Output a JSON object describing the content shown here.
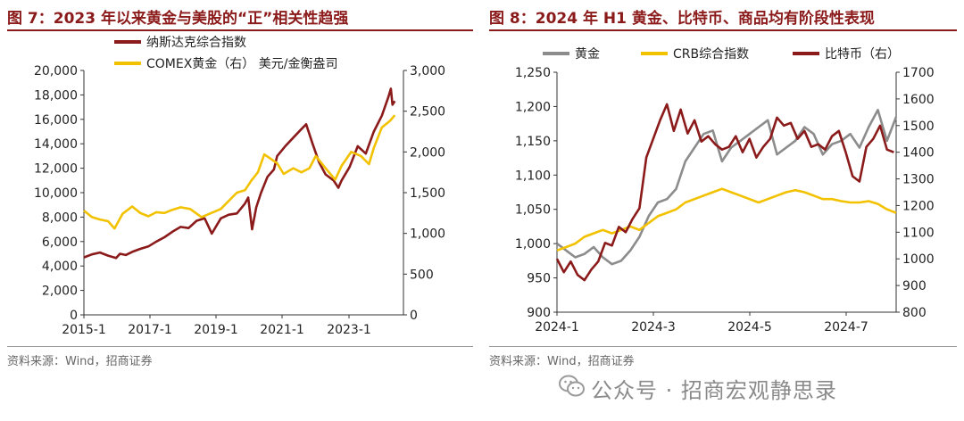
{
  "watermark": {
    "text": "公众号 · 招商宏观静思录",
    "icon": "wechat-icon"
  },
  "chart_data": [
    {
      "type": "line",
      "title": "图 7：2023 年以来黄金与美股的“正”相关性趋强",
      "source": "资料来源：Wind，招商证券",
      "x_ticks": [
        "2015-1",
        "2017-1",
        "2019-1",
        "2021-1",
        "2023-1"
      ],
      "x_range": [
        2015.0,
        2024.92
      ],
      "y_left": {
        "ticks": [
          "0",
          "2,000",
          "4,000",
          "6,000",
          "8,000",
          "10,000",
          "12,000",
          "14,000",
          "16,000",
          "18,000",
          "20,000"
        ],
        "range": [
          0,
          20000
        ]
      },
      "y_right": {
        "ticks": [
          "0",
          "500",
          "1,000",
          "1,500",
          "2,000",
          "2,500",
          "3,000"
        ],
        "range": [
          0,
          3000
        ]
      },
      "legend_position": "top-left",
      "series": [
        {
          "name": "纳斯达克综合指数",
          "axis": "left",
          "color": "#8B1A1A",
          "x": [
            2015.0,
            2015.25,
            2015.5,
            2015.75,
            2016.0,
            2016.12,
            2016.3,
            2016.5,
            2016.75,
            2017.0,
            2017.25,
            2017.5,
            2017.75,
            2018.0,
            2018.25,
            2018.5,
            2018.75,
            2018.97,
            2019.25,
            2019.5,
            2019.75,
            2020.0,
            2020.1,
            2020.22,
            2020.35,
            2020.5,
            2020.7,
            2020.9,
            2021.0,
            2021.25,
            2021.5,
            2021.75,
            2021.9,
            2022.1,
            2022.3,
            2022.5,
            2022.75,
            2022.9,
            2023.0,
            2023.25,
            2023.5,
            2023.75,
            2024.0,
            2024.25,
            2024.45,
            2024.53,
            2024.58,
            2024.65
          ],
          "y": [
            4700,
            4950,
            5100,
            4850,
            4650,
            5000,
            4900,
            5150,
            5400,
            5600,
            6000,
            6350,
            6800,
            7200,
            7100,
            7700,
            7900,
            6650,
            7900,
            8200,
            8300,
            9100,
            9600,
            7000,
            8800,
            10000,
            11300,
            11900,
            13000,
            13800,
            14500,
            15200,
            15600,
            14000,
            12500,
            11500,
            11000,
            10400,
            11000,
            12100,
            13800,
            13200,
            15000,
            16300,
            17800,
            18500,
            17200,
            17500
          ]
        },
        {
          "name": "COMEX黄金（右） 美元/金衡盎司",
          "axis": "right",
          "color": "#F2C200",
          "x": [
            2015.0,
            2015.25,
            2015.5,
            2015.75,
            2015.95,
            2016.2,
            2016.5,
            2016.75,
            2017.0,
            2017.25,
            2017.5,
            2017.75,
            2018.0,
            2018.3,
            2018.65,
            2018.9,
            2019.25,
            2019.5,
            2019.75,
            2020.0,
            2020.2,
            2020.4,
            2020.6,
            2021.0,
            2021.2,
            2021.5,
            2021.75,
            2022.0,
            2022.2,
            2022.5,
            2022.8,
            2023.0,
            2023.3,
            2023.6,
            2023.85,
            2024.0,
            2024.25,
            2024.5,
            2024.65
          ],
          "y": [
            1280,
            1200,
            1170,
            1150,
            1060,
            1240,
            1330,
            1250,
            1210,
            1260,
            1250,
            1290,
            1320,
            1300,
            1200,
            1240,
            1300,
            1400,
            1500,
            1530,
            1650,
            1750,
            1970,
            1860,
            1730,
            1800,
            1750,
            1800,
            1950,
            1800,
            1660,
            1830,
            2000,
            1950,
            1850,
            2050,
            2300,
            2380,
            2450
          ]
        }
      ]
    },
    {
      "type": "line",
      "title": "图 8：2024 年 H1 黄金、比特币、商品均有阶段性表现",
      "source": "资料来源：Wind，招商证券",
      "x_ticks": [
        "2024-1",
        "2024-3",
        "2024-5",
        "2024-7"
      ],
      "x_range": [
        1.0,
        8.4
      ],
      "y_left": {
        "ticks": [
          "900",
          "950",
          "1,000",
          "1,050",
          "1,100",
          "1,150",
          "1,200",
          "1,250"
        ],
        "range": [
          900,
          1250
        ]
      },
      "y_right": {
        "ticks": [
          "800",
          "900",
          "1000",
          "1100",
          "1200",
          "1300",
          "1400",
          "1500",
          "1600",
          "1700"
        ],
        "range": [
          800,
          1700
        ]
      },
      "legend_position": "top",
      "series": [
        {
          "name": "黄金",
          "axis": "left",
          "color": "#8C8C8C",
          "x": [
            1.0,
            1.2,
            1.4,
            1.6,
            1.8,
            2.0,
            2.2,
            2.4,
            2.6,
            2.8,
            3.0,
            3.2,
            3.4,
            3.6,
            3.8,
            4.0,
            4.2,
            4.4,
            4.6,
            4.8,
            5.0,
            5.2,
            5.4,
            5.6,
            5.8,
            6.0,
            6.2,
            6.4,
            6.6,
            6.8,
            7.0,
            7.2,
            7.4,
            7.6,
            7.8,
            8.0,
            8.2,
            8.4
          ],
          "y": [
            1000,
            990,
            980,
            985,
            995,
            980,
            970,
            975,
            990,
            1010,
            1040,
            1060,
            1065,
            1080,
            1120,
            1140,
            1160,
            1165,
            1120,
            1140,
            1150,
            1160,
            1170,
            1180,
            1130,
            1140,
            1150,
            1170,
            1160,
            1130,
            1145,
            1150,
            1160,
            1140,
            1170,
            1195,
            1150,
            1185
          ]
        },
        {
          "name": "CRB综合指数",
          "axis": "left",
          "color": "#F2C200",
          "x": [
            1.0,
            1.2,
            1.4,
            1.6,
            1.8,
            2.0,
            2.2,
            2.4,
            2.6,
            2.8,
            3.0,
            3.2,
            3.4,
            3.6,
            3.8,
            4.0,
            4.2,
            4.4,
            4.6,
            4.8,
            5.0,
            5.2,
            5.4,
            5.6,
            5.8,
            6.0,
            6.2,
            6.4,
            6.6,
            6.8,
            7.0,
            7.2,
            7.4,
            7.6,
            7.8,
            8.0,
            8.2,
            8.4
          ],
          "y": [
            990,
            995,
            1000,
            1010,
            1015,
            1020,
            1015,
            1020,
            1025,
            1020,
            1030,
            1040,
            1045,
            1050,
            1060,
            1065,
            1070,
            1075,
            1080,
            1075,
            1070,
            1065,
            1060,
            1065,
            1070,
            1075,
            1078,
            1075,
            1070,
            1065,
            1065,
            1062,
            1060,
            1060,
            1062,
            1058,
            1050,
            1045
          ]
        },
        {
          "name": "比特币（右）",
          "axis": "right",
          "color": "#8B1A1A",
          "x": [
            1.0,
            1.15,
            1.3,
            1.45,
            1.6,
            1.75,
            1.9,
            2.05,
            2.2,
            2.35,
            2.5,
            2.65,
            2.8,
            2.95,
            3.1,
            3.25,
            3.4,
            3.55,
            3.7,
            3.85,
            4.0,
            4.15,
            4.3,
            4.45,
            4.6,
            4.75,
            4.9,
            5.05,
            5.2,
            5.35,
            5.5,
            5.65,
            5.8,
            5.95,
            6.1,
            6.25,
            6.4,
            6.55,
            6.7,
            6.85,
            7.0,
            7.15,
            7.3,
            7.45,
            7.6,
            7.75,
            7.9,
            8.05,
            8.2,
            8.35
          ],
          "y": [
            1000,
            950,
            990,
            940,
            920,
            960,
            990,
            1060,
            1050,
            1120,
            1100,
            1150,
            1190,
            1380,
            1450,
            1520,
            1580,
            1480,
            1560,
            1470,
            1520,
            1440,
            1460,
            1430,
            1410,
            1420,
            1460,
            1400,
            1450,
            1380,
            1420,
            1450,
            1530,
            1500,
            1510,
            1450,
            1480,
            1420,
            1430,
            1410,
            1460,
            1480,
            1400,
            1310,
            1290,
            1420,
            1450,
            1500,
            1410,
            1400
          ]
        }
      ]
    }
  ]
}
